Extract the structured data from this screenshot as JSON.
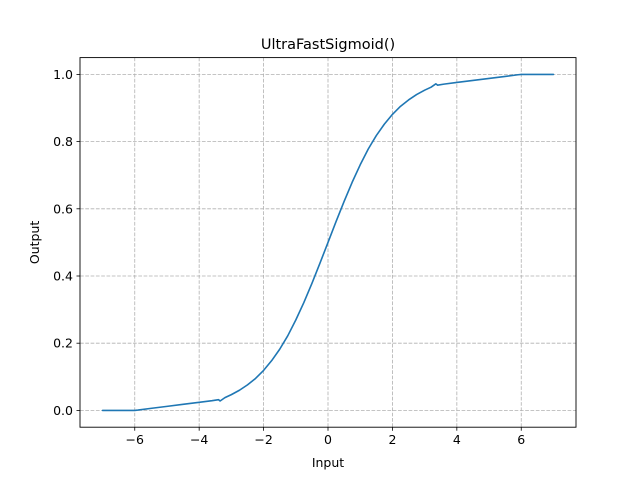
{
  "chart_data": {
    "type": "line",
    "title": "UltraFastSigmoid()",
    "xlabel": "Input",
    "ylabel": "Output",
    "xlim": [
      -7.7,
      7.7
    ],
    "ylim": [
      -0.05,
      1.05
    ],
    "x_ticks": [
      -6,
      -4,
      -2,
      0,
      2,
      4,
      6
    ],
    "x_tick_labels": [
      "−6",
      "−4",
      "−2",
      "0",
      "2",
      "4",
      "6"
    ],
    "y_ticks": [
      0.0,
      0.2,
      0.4,
      0.6,
      0.8,
      1.0
    ],
    "y_tick_labels": [
      "0.0",
      "0.2",
      "0.4",
      "0.6",
      "0.8",
      "1.0"
    ],
    "grid": true,
    "series": [
      {
        "color": "#1f77b4",
        "x": [
          -7.0,
          -6.5,
          -6.0,
          -5.9,
          -5.5,
          -5.0,
          -4.5,
          -4.0,
          -3.6,
          -3.4,
          -3.35,
          -3.2,
          -3.0,
          -2.75,
          -2.5,
          -2.25,
          -2.0,
          -1.75,
          -1.5,
          -1.25,
          -1.0,
          -0.75,
          -0.5,
          -0.25,
          0.0,
          0.25,
          0.5,
          0.75,
          1.0,
          1.25,
          1.5,
          1.75,
          2.0,
          2.25,
          2.5,
          2.75,
          3.0,
          3.2,
          3.35,
          3.4,
          3.6,
          4.0,
          4.5,
          5.0,
          5.5,
          5.9,
          6.0,
          6.5,
          7.0
        ],
        "y": [
          0.0,
          0.0,
          0.0,
          0.001,
          0.006,
          0.012,
          0.018,
          0.024,
          0.029,
          0.032,
          0.028,
          0.038,
          0.047,
          0.06,
          0.076,
          0.095,
          0.119,
          0.148,
          0.182,
          0.222,
          0.269,
          0.321,
          0.378,
          0.438,
          0.5,
          0.562,
          0.622,
          0.679,
          0.731,
          0.778,
          0.818,
          0.852,
          0.881,
          0.905,
          0.924,
          0.94,
          0.953,
          0.962,
          0.972,
          0.968,
          0.971,
          0.976,
          0.982,
          0.988,
          0.994,
          0.999,
          1.0,
          1.0,
          1.0
        ]
      }
    ]
  }
}
